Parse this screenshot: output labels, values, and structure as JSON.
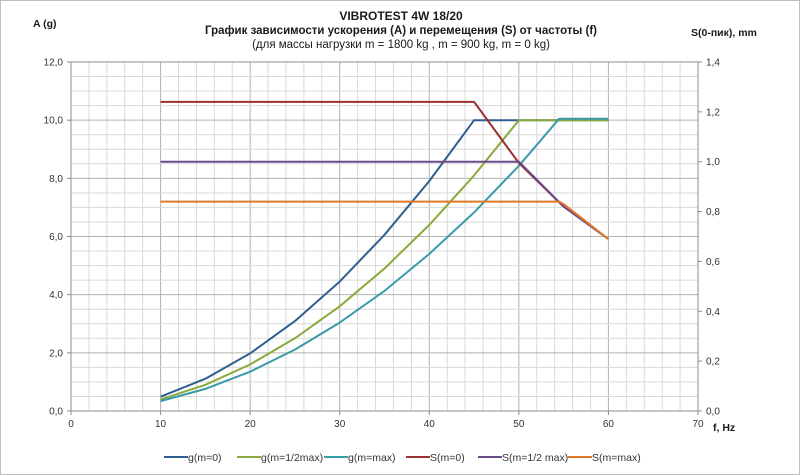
{
  "chart_data": {
    "type": "line",
    "title": "VIBROTEST 4W 18/20",
    "subtitle": "График зависимости ускорения (A) и перемещения (S) от частоты (f)",
    "subtitle2": "(для массы нагрузки m = 1800 kg , m = 900 kg, m = 0 kg)",
    "xlabel": "f, Hz",
    "ylabel_left": "A (g)",
    "ylabel_right": "S(0-пик), mm",
    "xlim": [
      0,
      70
    ],
    "ylim_left": [
      0,
      12
    ],
    "ylim_right": [
      0,
      1.4
    ],
    "xticks": [
      "0",
      "10",
      "20",
      "30",
      "40",
      "50",
      "60",
      "70"
    ],
    "yticks_left": [
      "0,0",
      "2,0",
      "4,0",
      "6,0",
      "8,0",
      "10,0",
      "12,0"
    ],
    "yticks_right": [
      "0,0",
      "0,2",
      "0,4",
      "0,6",
      "0,8",
      "1,0",
      "1,2",
      "1,4"
    ],
    "grid": true,
    "legend_position": "bottom",
    "series": [
      {
        "name": "g(m=0)",
        "axis": "left",
        "color": "#2f5f8f",
        "x": [
          10,
          15,
          20,
          25,
          30,
          35,
          40,
          45,
          50,
          54.5,
          60
        ],
        "y": [
          0.49,
          1.11,
          1.98,
          3.09,
          4.45,
          6.06,
          7.91,
          10.0,
          10.0,
          10.0,
          10.0
        ]
      },
      {
        "name": "g(m=1/2max)",
        "axis": "left",
        "color": "#8aaa3c",
        "x": [
          10,
          15,
          20,
          25,
          30,
          35,
          40,
          45,
          50,
          54.5,
          60
        ],
        "y": [
          0.4,
          0.9,
          1.6,
          2.5,
          3.6,
          4.9,
          6.4,
          8.1,
          10.0,
          10.0,
          10.0
        ]
      },
      {
        "name": "g(m=max)",
        "axis": "left",
        "color": "#3a9aaa",
        "x": [
          10,
          15,
          20,
          25,
          30,
          35,
          40,
          45,
          50,
          54.5,
          60
        ],
        "y": [
          0.34,
          0.76,
          1.35,
          2.11,
          3.04,
          4.13,
          5.4,
          6.83,
          8.43,
          10.05,
          10.05
        ]
      },
      {
        "name": "S(m=0)",
        "axis": "right",
        "color": "#9a3030",
        "x": [
          10,
          45,
          50,
          55,
          60
        ],
        "y": [
          1.24,
          1.24,
          0.995,
          0.82,
          0.69
        ]
      },
      {
        "name": "S(m=1/2 max)",
        "axis": "right",
        "color": "#6a4a8a",
        "x": [
          10,
          50,
          55,
          60
        ],
        "y": [
          1.0,
          1.0,
          0.82,
          0.69
        ]
      },
      {
        "name": "S(m=max)",
        "axis": "right",
        "color": "#e0782a",
        "x": [
          10,
          54.5,
          55,
          60
        ],
        "y": [
          0.84,
          0.84,
          0.83,
          0.69
        ]
      }
    ]
  }
}
